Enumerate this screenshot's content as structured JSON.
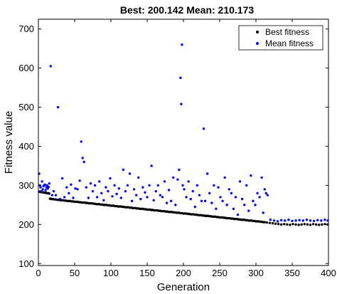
{
  "chart_data": {
    "type": "scatter",
    "title": "Best: 200.142 Mean: 210.173",
    "xlabel": "Generation",
    "ylabel": "Fitness value",
    "xlim": [
      0,
      400
    ],
    "ylim": [
      95,
      725
    ],
    "xticks": [
      "0",
      "50",
      "100",
      "150",
      "200",
      "250",
      "300",
      "350",
      "400"
    ],
    "yticks": [
      "100",
      "200",
      "300",
      "400",
      "500",
      "600",
      "700"
    ],
    "grid": false,
    "legend_position": "top-right",
    "series": [
      {
        "name": "Best fitness",
        "color": "#000000",
        "x": [
          1,
          2,
          3,
          4,
          5,
          6,
          7,
          8,
          9,
          10,
          11,
          12,
          13,
          14,
          15,
          16,
          17,
          18,
          19,
          20,
          22,
          24,
          26,
          28,
          30,
          32,
          34,
          36,
          38,
          40,
          42,
          44,
          46,
          48,
          50,
          52,
          54,
          56,
          58,
          60,
          62,
          64,
          66,
          68,
          70,
          72,
          74,
          76,
          78,
          80,
          82,
          84,
          86,
          88,
          90,
          92,
          94,
          96,
          98,
          100,
          102,
          104,
          106,
          108,
          110,
          112,
          114,
          116,
          118,
          120,
          122,
          124,
          126,
          128,
          130,
          132,
          134,
          136,
          138,
          140,
          142,
          144,
          146,
          148,
          150,
          152,
          154,
          156,
          158,
          160,
          162,
          164,
          166,
          168,
          170,
          172,
          174,
          176,
          178,
          180,
          182,
          184,
          186,
          188,
          190,
          192,
          194,
          196,
          198,
          200,
          202,
          204,
          206,
          208,
          210,
          212,
          214,
          216,
          218,
          220,
          222,
          224,
          226,
          228,
          230,
          232,
          234,
          236,
          238,
          240,
          242,
          244,
          246,
          248,
          250,
          252,
          254,
          256,
          258,
          260,
          262,
          264,
          266,
          268,
          270,
          272,
          274,
          276,
          278,
          280,
          282,
          284,
          286,
          288,
          290,
          292,
          294,
          296,
          298,
          300,
          302,
          304,
          306,
          308,
          310,
          312,
          315,
          319,
          323,
          327,
          331,
          335,
          339,
          343,
          347,
          351,
          355,
          359,
          363,
          367,
          371,
          375,
          379,
          383,
          387,
          391,
          395,
          399
        ],
        "values": [
          284,
          284,
          283,
          283,
          283,
          282,
          282,
          282,
          281,
          281,
          281,
          280,
          280,
          280,
          279,
          266,
          266,
          265,
          265,
          265,
          264,
          264,
          263,
          263,
          262,
          262,
          262,
          261,
          261,
          260,
          260,
          260,
          259,
          259,
          258,
          258,
          258,
          257,
          257,
          256,
          256,
          256,
          255,
          255,
          254,
          254,
          254,
          253,
          253,
          252,
          252,
          252,
          251,
          251,
          250,
          250,
          250,
          249,
          249,
          248,
          248,
          248,
          247,
          247,
          246,
          246,
          246,
          245,
          245,
          244,
          244,
          244,
          243,
          243,
          242,
          242,
          242,
          241,
          241,
          240,
          240,
          240,
          239,
          239,
          238,
          238,
          238,
          237,
          237,
          236,
          236,
          236,
          235,
          235,
          234,
          234,
          234,
          233,
          233,
          232,
          232,
          232,
          231,
          231,
          230,
          230,
          230,
          229,
          229,
          228,
          228,
          228,
          227,
          227,
          226,
          226,
          226,
          225,
          225,
          224,
          224,
          224,
          223,
          223,
          222,
          222,
          222,
          221,
          221,
          220,
          220,
          220,
          219,
          219,
          218,
          218,
          218,
          217,
          217,
          216,
          216,
          216,
          215,
          215,
          214,
          214,
          214,
          213,
          213,
          212,
          212,
          212,
          211,
          211,
          210,
          210,
          210,
          209,
          209,
          208,
          208,
          208,
          207,
          207,
          206,
          206,
          205,
          204,
          203,
          202,
          201,
          200,
          201,
          200,
          199,
          201,
          200,
          199,
          200,
          201,
          200,
          199,
          201,
          200,
          199,
          200,
          201,
          200
        ]
      },
      {
        "name": "Mean fitness",
        "color": "#0000ff",
        "x": [
          1,
          2,
          3,
          4,
          5,
          6,
          7,
          8,
          9,
          10,
          11,
          12,
          13,
          14,
          15,
          17,
          19,
          21,
          24,
          27,
          30,
          33,
          36,
          39,
          42,
          45,
          48,
          51,
          54,
          57,
          59,
          61,
          63,
          66,
          69,
          72,
          75,
          78,
          81,
          84,
          87,
          90,
          93,
          96,
          99,
          102,
          105,
          108,
          111,
          114,
          117,
          120,
          123,
          126,
          129,
          132,
          135,
          138,
          141,
          144,
          147,
          150,
          153,
          156,
          159,
          162,
          165,
          168,
          171,
          174,
          177,
          180,
          183,
          186,
          189,
          192,
          194,
          196,
          197,
          198,
          199,
          201,
          204,
          207,
          210,
          213,
          216,
          219,
          222,
          225,
          228,
          230,
          233,
          236,
          239,
          242,
          245,
          248,
          251,
          254,
          257,
          260,
          263,
          266,
          269,
          272,
          275,
          278,
          281,
          284,
          287,
          290,
          293,
          296,
          299,
          302,
          305,
          308,
          310,
          312,
          314,
          316,
          320,
          325,
          330,
          335,
          340,
          345,
          350,
          355,
          360,
          365,
          370,
          375,
          380,
          385,
          390,
          395,
          399
        ],
        "values": [
          330,
          300,
          295,
          285,
          310,
          290,
          298,
          300,
          302,
          288,
          295,
          300,
          292,
          296,
          305,
          605,
          275,
          285,
          275,
          500,
          265,
          318,
          270,
          295,
          280,
          302,
          268,
          292,
          290,
          312,
          412,
          370,
          360,
          295,
          268,
          305,
          285,
          300,
          270,
          310,
          280,
          262,
          295,
          285,
          318,
          272,
          300,
          278,
          292,
          268,
          340,
          285,
          300,
          330,
          260,
          290,
          275,
          320,
          265,
          295,
          282,
          270,
          300,
          350,
          262,
          285,
          300,
          275,
          270,
          310,
          255,
          288,
          260,
          320,
          250,
          315,
          340,
          575,
          508,
          660,
          300,
          290,
          270,
          310,
          265,
          285,
          245,
          300,
          275,
          260,
          445,
          260,
          330,
          280,
          255,
          300,
          240,
          295,
          270,
          260,
          320,
          250,
          290,
          280,
          240,
          270,
          225,
          310,
          265,
          250,
          300,
          235,
          325,
          260,
          250,
          280,
          270,
          320,
          230,
          290,
          280,
          275,
          212,
          210,
          208,
          211,
          210,
          212,
          209,
          210,
          211,
          210,
          212,
          210,
          209,
          211,
          210,
          212,
          210
        ]
      }
    ]
  }
}
